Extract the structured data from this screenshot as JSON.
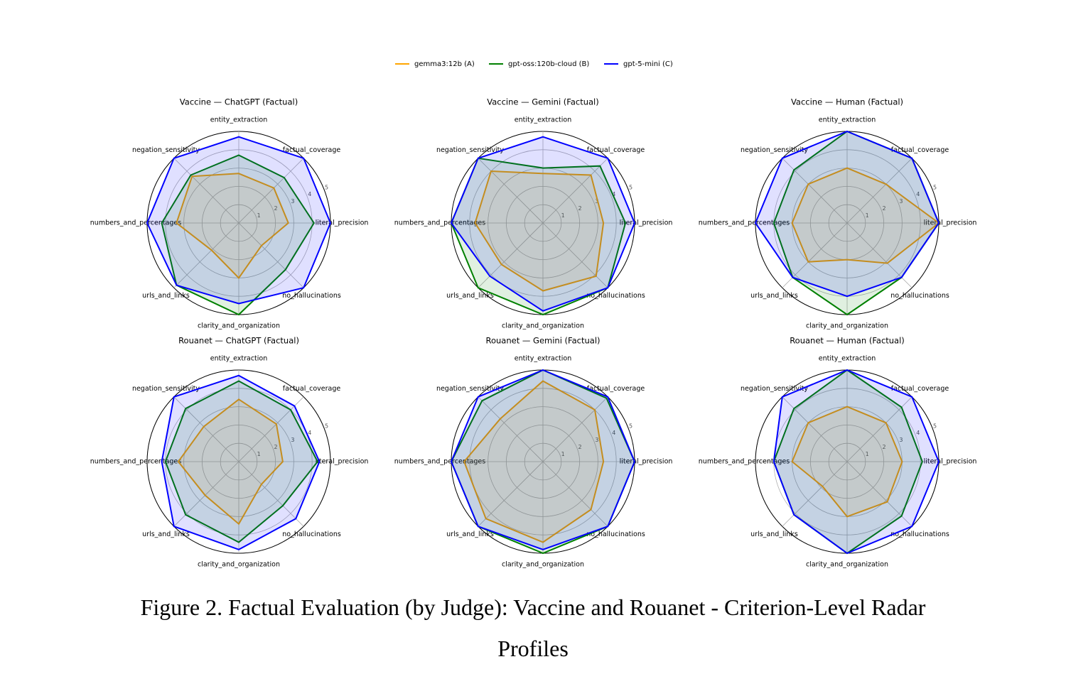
{
  "legend": [
    {
      "name": "gemma3:12b (A)",
      "color": "#ffa500"
    },
    {
      "name": "gpt-oss:120b-cloud (B)",
      "color": "#008000"
    },
    {
      "name": "gpt-5-mini (C)",
      "color": "#0000ff"
    }
  ],
  "chart_data": [
    {
      "type": "radar",
      "title": "Vaccine — ChatGPT (Factual)",
      "categories": [
        "entity_extraction",
        "factual_coverage",
        "literal_precision",
        "no_hallucinations",
        "clarity_and_organization",
        "urls_and_links",
        "numbers_and_percentages",
        "negation_sensitivity"
      ],
      "series": [
        {
          "values": [
            2.7,
            2.7,
            2.7,
            1.75,
            3.0,
            2.1,
            3.4,
            3.6
          ]
        },
        {
          "values": [
            3.7,
            3.5,
            4.1,
            3.6,
            5,
            4.8,
            4.2,
            3.7
          ]
        },
        {
          "values": [
            4.7,
            5,
            5,
            5,
            4.4,
            4.8,
            5,
            5
          ]
        }
      ],
      "rlim": [
        0,
        5
      ],
      "rticks": [
        1,
        2,
        3,
        4,
        5
      ]
    },
    {
      "type": "radar",
      "title": "Vaccine — Gemini (Factual)",
      "categories": [
        "entity_extraction",
        "factual_coverage",
        "literal_precision",
        "no_hallucinations",
        "clarity_and_organization",
        "urls_and_links",
        "numbers_and_percentages",
        "negation_sensitivity"
      ],
      "series": [
        {
          "values": [
            2.7,
            3.7,
            3.3,
            4.1,
            3.7,
            3.2,
            3.7,
            4.0
          ]
        },
        {
          "values": [
            3.0,
            4.4,
            4.5,
            5,
            5,
            5,
            5,
            5
          ]
        },
        {
          "values": [
            4.7,
            5,
            5,
            5,
            4.8,
            4.1,
            5,
            5
          ]
        }
      ],
      "rlim": [
        0,
        5
      ],
      "rticks": [
        1,
        2,
        3,
        4,
        5
      ]
    },
    {
      "type": "radar",
      "title": "Vaccine — Human (Factual)",
      "categories": [
        "entity_extraction",
        "factual_coverage",
        "literal_precision",
        "no_hallucinations",
        "clarity_and_organization",
        "urls_and_links",
        "numbers_and_percentages",
        "negation_sensitivity"
      ],
      "series": [
        {
          "values": [
            3.0,
            3.0,
            5,
            3.1,
            2.0,
            3.0,
            3.0,
            3.0
          ]
        },
        {
          "values": [
            5,
            5,
            5,
            4.2,
            5,
            4.2,
            4.0,
            4.1
          ]
        },
        {
          "values": [
            5,
            5,
            5,
            4.2,
            4.0,
            4.2,
            5,
            5
          ]
        }
      ],
      "rlim": [
        0,
        5
      ],
      "rticks": [
        1,
        2,
        3,
        4,
        5
      ]
    },
    {
      "type": "radar",
      "title": "Rouanet — ChatGPT (Factual)",
      "categories": [
        "entity_extraction",
        "factual_coverage",
        "literal_precision",
        "no_hallucinations",
        "clarity_and_organization",
        "urls_and_links",
        "numbers_and_percentages",
        "negation_sensitivity"
      ],
      "series": [
        {
          "values": [
            3.4,
            2.9,
            2.4,
            1.75,
            3.4,
            2.6,
            3.3,
            2.7
          ]
        },
        {
          "values": [
            4.4,
            4.0,
            4.3,
            3.4,
            4.4,
            4.1,
            4.0,
            4.1
          ]
        },
        {
          "values": [
            4.7,
            4.3,
            4.4,
            4.4,
            4.8,
            5,
            4.2,
            5
          ]
        }
      ],
      "rlim": [
        0,
        5
      ],
      "rticks": [
        1,
        2,
        3,
        4,
        5
      ]
    },
    {
      "type": "radar",
      "title": "Rouanet — Gemini (Factual)",
      "categories": [
        "entity_extraction",
        "factual_coverage",
        "literal_precision",
        "no_hallucinations",
        "clarity_and_organization",
        "urls_and_links",
        "numbers_and_percentages",
        "negation_sensitivity"
      ],
      "series": [
        {
          "values": [
            4.4,
            4.0,
            3.3,
            3.7,
            4.4,
            4.4,
            4.3,
            3.3
          ]
        },
        {
          "values": [
            5,
            4.9,
            5,
            5,
            5,
            5,
            5,
            4.7
          ]
        },
        {
          "values": [
            5,
            5,
            5,
            5,
            4.8,
            5,
            5,
            5
          ]
        }
      ],
      "rlim": [
        0,
        5
      ],
      "rticks": [
        1,
        2,
        3,
        4,
        5
      ]
    },
    {
      "type": "radar",
      "title": "Rouanet — Human (Factual)",
      "categories": [
        "entity_extraction",
        "factual_coverage",
        "literal_precision",
        "no_hallucinations",
        "clarity_and_organization",
        "urls_and_links",
        "numbers_and_percentages",
        "negation_sensitivity"
      ],
      "series": [
        {
          "values": [
            3.0,
            3.0,
            3.0,
            3.1,
            3.0,
            1.9,
            3.0,
            3.0
          ]
        },
        {
          "values": [
            5,
            4.2,
            4.1,
            4.2,
            5,
            4.1,
            4.0,
            4.1
          ]
        },
        {
          "values": [
            5,
            5,
            5,
            5,
            5,
            4.1,
            4.0,
            5
          ]
        }
      ],
      "rlim": [
        0,
        5
      ],
      "rticks": [
        1,
        2,
        3,
        4,
        5
      ]
    }
  ],
  "caption": "Figure 2. Factual Evaluation (by Judge): Vaccine and Rouanet - Criterion-Level Radar Profiles"
}
